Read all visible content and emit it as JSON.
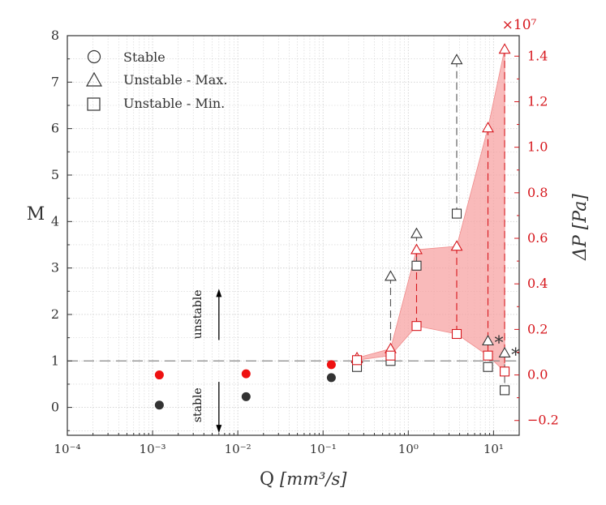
{
  "chart_data": {
    "type": "scatter",
    "x_scale": "log",
    "xlabel_main": "Q",
    "xlabel_unit": "[mm³/s]",
    "xlim": [
      0.0001,
      20
    ],
    "ylabel_left": "M",
    "ylim_left": [
      -0.6,
      8
    ],
    "ylabel_right": "ΔP [Pa]",
    "right_axis_multiplier": "×10⁷",
    "ylim_right": [
      -0.265,
      1.49
    ],
    "x_ticks": [
      {
        "value": 0.0001,
        "label": "10⁻⁴"
      },
      {
        "value": 0.001,
        "label": "10⁻³"
      },
      {
        "value": 0.01,
        "label": "10⁻²"
      },
      {
        "value": 0.1,
        "label": "10⁻¹"
      },
      {
        "value": 1,
        "label": "10⁰"
      },
      {
        "value": 10,
        "label": "10¹"
      }
    ],
    "y_ticks_left": [
      0,
      1,
      2,
      3,
      4,
      5,
      6,
      7,
      8
    ],
    "y_ticks_right": [
      {
        "value": -0.2,
        "label": "−0.2"
      },
      {
        "value": 0.0,
        "label": "0.0"
      },
      {
        "value": 0.2,
        "label": "0.2"
      },
      {
        "value": 0.4,
        "label": "0.4"
      },
      {
        "value": 0.6,
        "label": "0.6"
      },
      {
        "value": 0.8,
        "label": "0.8"
      },
      {
        "value": 1.0,
        "label": "1.0"
      },
      {
        "value": 1.2,
        "label": "1.2"
      },
      {
        "value": 1.4,
        "label": "1.4"
      }
    ],
    "threshold_M": 1,
    "legend": {
      "placement": "top-left",
      "entries": [
        {
          "marker": "circle",
          "label": "Stable"
        },
        {
          "marker": "triangle",
          "label": "Unstable - Max."
        },
        {
          "marker": "square",
          "label": "Unstable - Min."
        }
      ]
    },
    "annotations": {
      "unstable_label": "unstable",
      "stable_label": "stable",
      "arrow_x": 0.006,
      "unstable_arrow_M": [
        1.45,
        2.55
      ],
      "stable_arrow_M": [
        0.55,
        -0.55
      ],
      "asterisk": "*"
    },
    "colors": {
      "left": "#333333",
      "right": "#d6161c",
      "fill": "#f7a3a3"
    },
    "M_series": {
      "stable": [
        {
          "x": 0.0012,
          "y": 0.05
        },
        {
          "x": 0.0125,
          "y": 0.23
        },
        {
          "x": 0.125,
          "y": 0.64
        }
      ],
      "unstable_max": [
        {
          "x": 0.25,
          "y": 1.05
        },
        {
          "x": 0.62,
          "y": 2.82
        },
        {
          "x": 1.25,
          "y": 3.74
        },
        {
          "x": 3.7,
          "y": 7.48
        },
        {
          "x": 8.6,
          "y": 1.43
        },
        {
          "x": 13.5,
          "y": 1.17
        }
      ],
      "unstable_min": [
        {
          "x": 0.25,
          "y": 0.87
        },
        {
          "x": 0.62,
          "y": 1.0
        },
        {
          "x": 1.25,
          "y": 3.05
        },
        {
          "x": 3.7,
          "y": 4.17
        },
        {
          "x": 8.6,
          "y": 0.87
        },
        {
          "x": 13.5,
          "y": 0.37
        }
      ],
      "asterisk_points": [
        {
          "x": 8.6,
          "y": 1.43
        },
        {
          "x": 13.5,
          "y": 1.17
        }
      ]
    },
    "dP_series": {
      "stable": [
        {
          "x": 0.0012,
          "y": 0.0
        },
        {
          "x": 0.0125,
          "y": 0.005
        },
        {
          "x": 0.125,
          "y": 0.045
        }
      ],
      "unstable_max": [
        {
          "x": 0.25,
          "y": 0.075
        },
        {
          "x": 0.62,
          "y": 0.115
        },
        {
          "x": 1.25,
          "y": 0.55
        },
        {
          "x": 3.7,
          "y": 0.565
        },
        {
          "x": 8.6,
          "y": 1.085
        },
        {
          "x": 13.5,
          "y": 1.43
        }
      ],
      "unstable_min": [
        {
          "x": 0.25,
          "y": 0.065
        },
        {
          "x": 0.62,
          "y": 0.085
        },
        {
          "x": 1.25,
          "y": 0.215
        },
        {
          "x": 3.7,
          "y": 0.18
        },
        {
          "x": 8.6,
          "y": 0.085
        },
        {
          "x": 13.5,
          "y": 0.015
        }
      ]
    }
  }
}
